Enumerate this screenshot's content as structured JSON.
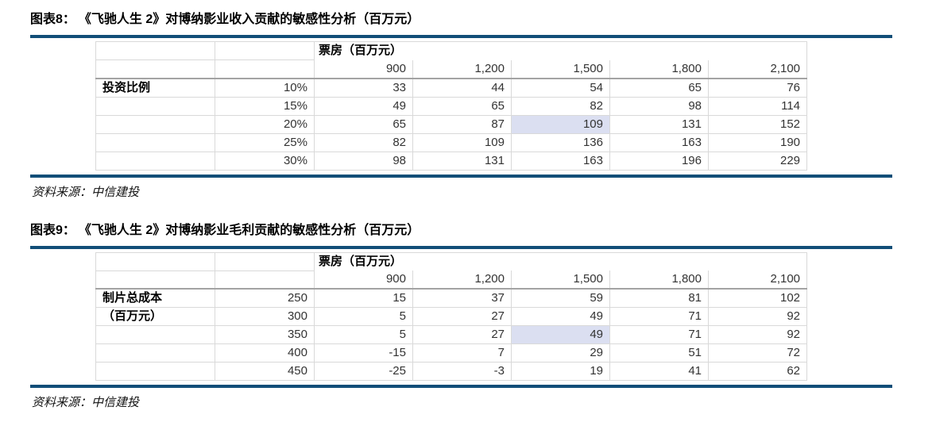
{
  "styles": {
    "accent": "#114e78",
    "highlight": "#dbdff1",
    "border_light": "#d9d9d9",
    "border_heavy": "#a3a3a3",
    "divider": "#8f8f8f"
  },
  "figures": [
    {
      "title_label": "图表8：",
      "title": "《飞驰人生 2》对博纳影业收入贡献的敏感性分析（百万元）",
      "source": "资料来源：中信建投",
      "table": {
        "group_header": "票房（百万元）",
        "columns": [
          "900",
          "1,200",
          "1,500",
          "1,800",
          "2,100"
        ],
        "rows": [
          {
            "axis": "投资比例",
            "label": "10%",
            "values": [
              "33",
              "44",
              "54",
              "65",
              "76"
            ],
            "highlight": -1
          },
          {
            "axis": "",
            "label": "15%",
            "values": [
              "49",
              "65",
              "82",
              "98",
              "114"
            ],
            "highlight": -1
          },
          {
            "axis": "",
            "label": "20%",
            "values": [
              "65",
              "87",
              "109",
              "131",
              "152"
            ],
            "highlight": 2
          },
          {
            "axis": "",
            "label": "25%",
            "values": [
              "82",
              "109",
              "136",
              "163",
              "190"
            ],
            "highlight": -1
          },
          {
            "axis": "",
            "label": "30%",
            "values": [
              "98",
              "131",
              "163",
              "196",
              "229"
            ],
            "highlight": -1
          }
        ]
      }
    },
    {
      "title_label": "图表9：",
      "title": "《飞驰人生 2》对博纳影业毛利贡献的敏感性分析（百万元）",
      "source": "资料来源：中信建投",
      "table": {
        "group_header": "票房（百万元）",
        "columns": [
          "900",
          "1,200",
          "1,500",
          "1,800",
          "2,100"
        ],
        "rows": [
          {
            "axis": "制片总成本",
            "label": "250",
            "values": [
              "15",
              "37",
              "59",
              "81",
              "102"
            ],
            "highlight": -1
          },
          {
            "axis": "（百万元）",
            "label": "300",
            "values": [
              "5",
              "27",
              "49",
              "71",
              "92"
            ],
            "highlight": -1
          },
          {
            "axis": "",
            "label": "350",
            "values": [
              "5",
              "27",
              "49",
              "71",
              "92"
            ],
            "highlight": 2
          },
          {
            "axis": "",
            "label": "400",
            "values": [
              "-15",
              "7",
              "29",
              "51",
              "72"
            ],
            "highlight": -1
          },
          {
            "axis": "",
            "label": "450",
            "values": [
              "-25",
              "-3",
              "19",
              "41",
              "62"
            ],
            "highlight": -1
          }
        ]
      }
    }
  ]
}
